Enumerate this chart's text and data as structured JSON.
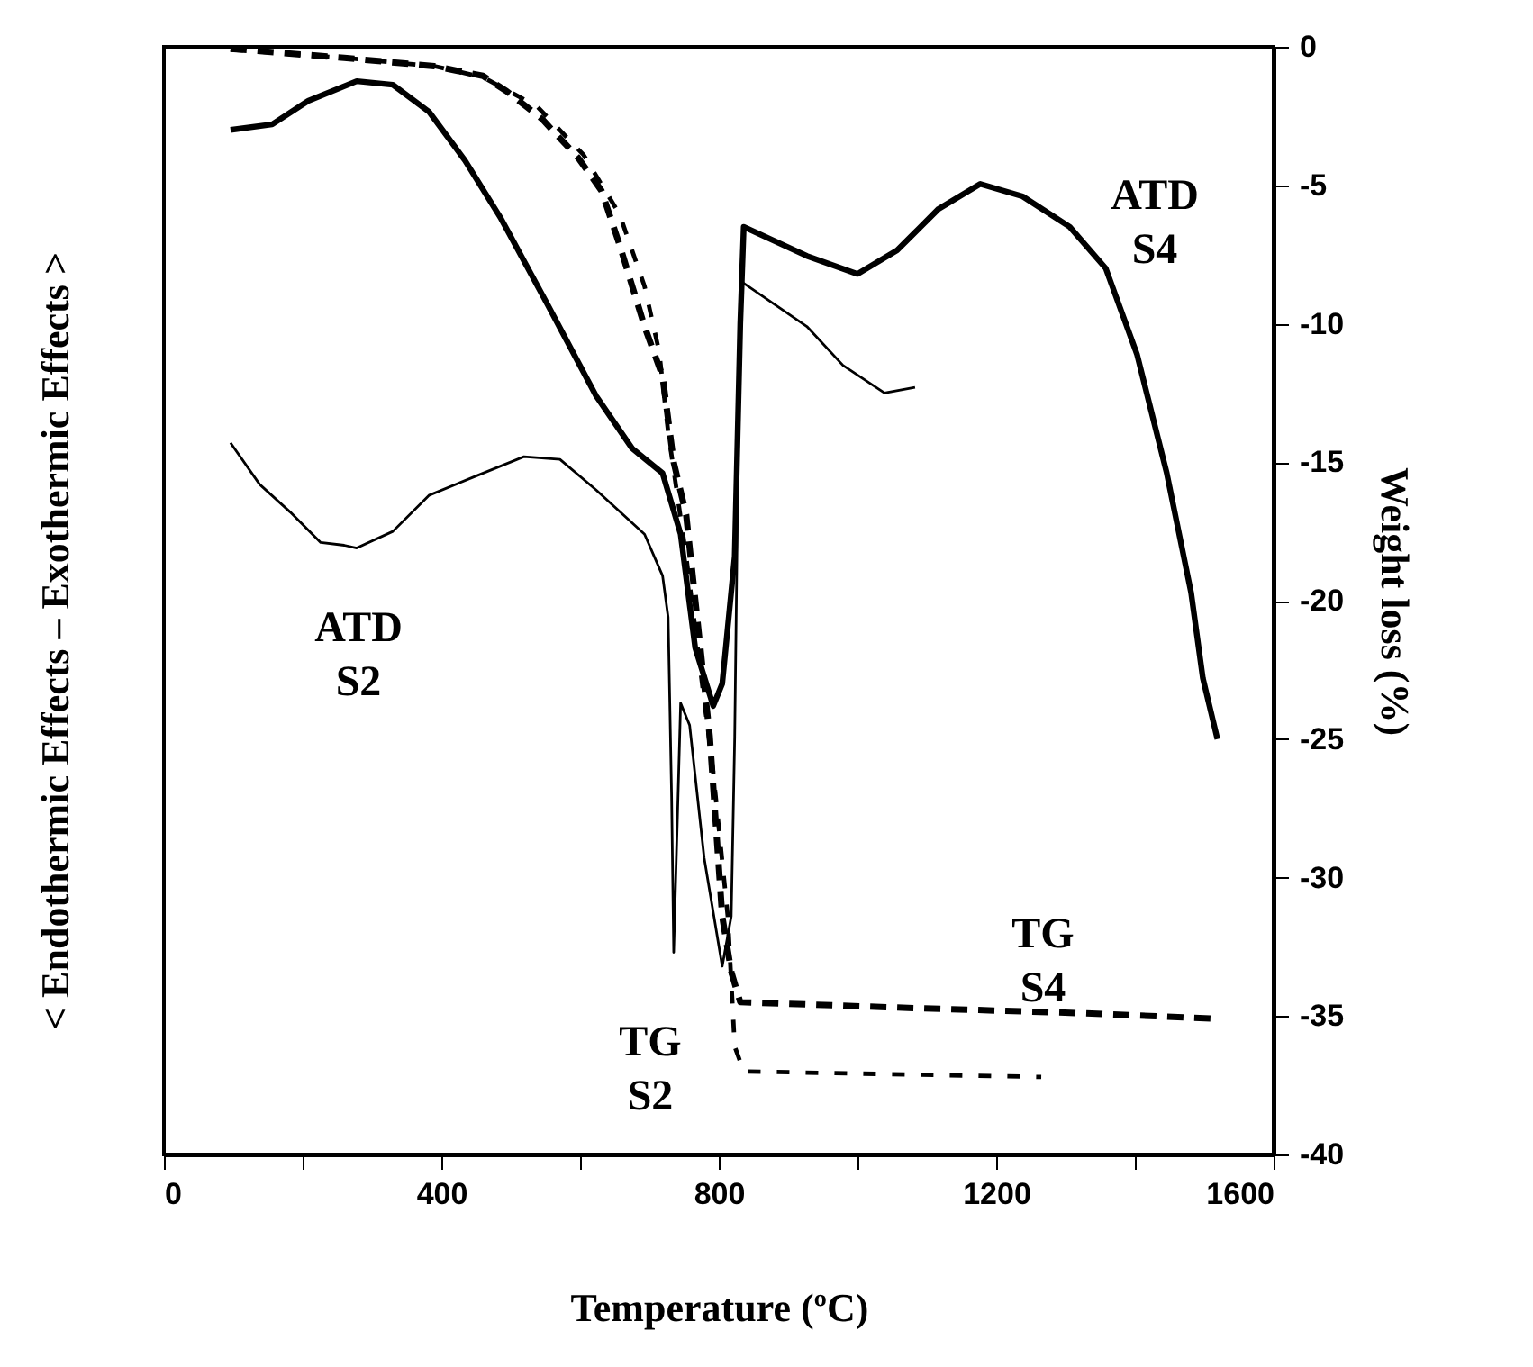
{
  "chart_data": {
    "type": "line",
    "xlabel": "Temperature (ºC)",
    "ylabel": "< Endothermic Effects – Exothermic Effects >",
    "y2label": "Weight loss (%)",
    "xlim": [
      0,
      1600
    ],
    "xticks": [
      0,
      {
        "value": 200,
        "label": null
      },
      400,
      {
        "value": 600,
        "label": null
      },
      800,
      {
        "value": 1000,
        "label": null
      },
      1200,
      {
        "value": 1400,
        "label": null
      },
      1600
    ],
    "y2lim": [
      -40,
      0
    ],
    "y2ticks": [
      0,
      -5,
      -10,
      -15,
      -20,
      -25,
      -30,
      -35,
      -40
    ],
    "tick_labels": [
      "x",
      "y2"
    ],
    "grid": false,
    "marker": "none",
    "series": [
      {
        "color": "#000000",
        "axis": "y2",
        "line_style": "solid",
        "x": [
          96,
          156,
          208,
          278,
          330,
          382,
          434,
          486,
          553,
          623,
          675,
          719,
          745,
          766,
          792,
          805,
          823,
          831,
          836,
          927,
          1000,
          1057,
          1117,
          1177,
          1238,
          1306,
          1358,
          1403,
          1446,
          1481,
          1498,
          1519
        ],
        "values": [
          -3.0,
          -2.8,
          -1.95,
          -1.24,
          -1.37,
          -2.34,
          -4.1,
          -6.2,
          -9.3,
          -12.6,
          -14.5,
          -15.4,
          -17.6,
          -21.7,
          -23.8,
          -23.0,
          -18.4,
          -10.0,
          -6.5,
          -7.55,
          -8.2,
          -7.35,
          -5.85,
          -4.95,
          -5.4,
          -6.5,
          -8.0,
          -11.1,
          -15.4,
          -19.7,
          -22.8,
          -25.0
        ]
      },
      {
        "color": "#000000",
        "axis": "y2",
        "line_style": "solid",
        "x": [
          96,
          138,
          182,
          226,
          260,
          278,
          330,
          382,
          450,
          519,
          571,
          623,
          693,
          719,
          727,
          732,
          735,
          745,
          758,
          779,
          805,
          818,
          823,
          831,
          927,
          979,
          1039,
          1083
        ],
        "values": [
          -14.3,
          -15.8,
          -16.8,
          -17.9,
          -18.0,
          -18.1,
          -17.5,
          -16.2,
          -15.5,
          -14.8,
          -14.9,
          -16.0,
          -17.6,
          -19.1,
          -20.6,
          -27.1,
          -32.7,
          -23.7,
          -24.5,
          -29.3,
          -33.2,
          -31.4,
          -24.9,
          -8.45,
          -10.1,
          -11.5,
          -12.5,
          -12.3
        ]
      },
      {
        "color": "#000000",
        "axis": "y2",
        "line_style": "dashed",
        "x": [
          96,
          260,
          390,
          460,
          494,
          545,
          597,
          631,
          657,
          693,
          719,
          735,
          753,
          787,
          805,
          818,
          831,
          1065,
          1325,
          1519
        ],
        "values": [
          -0.07,
          -0.4,
          -0.7,
          -1.05,
          -1.6,
          -2.6,
          -4.0,
          -5.2,
          -7.15,
          -10.1,
          -11.9,
          -15.0,
          -16.9,
          -24.9,
          -31.4,
          -33.4,
          -34.5,
          -34.7,
          -34.9,
          -35.1
        ]
      },
      {
        "color": "#000000",
        "axis": "y2",
        "line_style": "dashed",
        "x": [
          96,
          260,
          390,
          460,
          538,
          605,
          657,
          693,
          714,
          727,
          753,
          792,
          813,
          823,
          836,
          1050,
          1265
        ],
        "values": [
          -0.1,
          -0.4,
          -0.7,
          -1.1,
          -2.15,
          -3.9,
          -6.05,
          -8.65,
          -11.0,
          -13.9,
          -18.4,
          -26.2,
          -31.4,
          -36.1,
          -37.0,
          -37.1,
          -37.2
        ]
      }
    ],
    "annotations": [
      "ATD\nS4",
      "ATD\nS2",
      "TG\nS2",
      "TG\nS4"
    ]
  }
}
